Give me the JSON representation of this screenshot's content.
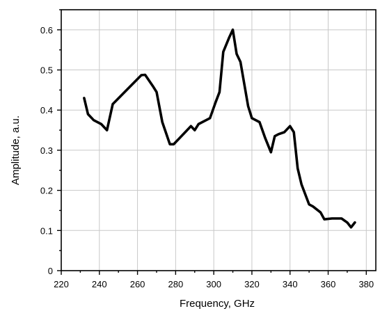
{
  "chart_data": {
    "type": "line",
    "title": "",
    "xlabel": "Frequency, GHz",
    "ylabel": "Amplitude, a.u.",
    "xlim": [
      220,
      385
    ],
    "ylim": [
      0,
      0.65
    ],
    "x_ticks": [
      220,
      240,
      260,
      280,
      300,
      320,
      340,
      360,
      380
    ],
    "x_tick_labels": [
      "220",
      "240",
      "260",
      "280",
      "300",
      "320",
      "340",
      "360",
      "380"
    ],
    "y_ticks": [
      0,
      0.1,
      0.2,
      0.3,
      0.4,
      0.5,
      0.6
    ],
    "y_tick_labels": [
      "0",
      "0.1",
      "0.2",
      "0.3",
      "0.4",
      "0.5",
      "0.6"
    ],
    "grid": true,
    "legend": "none",
    "line_color": "#000000",
    "grid_color": "#c8c8c8",
    "series": [
      {
        "x": [
          232,
          234,
          237,
          241,
          244,
          247,
          262,
          264,
          268,
          270,
          273,
          277,
          279,
          285,
          288,
          290,
          292,
          298,
          301,
          303,
          305,
          308,
          310,
          312,
          314,
          318,
          320,
          324,
          327,
          330,
          332,
          334,
          337,
          340,
          342,
          344,
          346,
          350,
          352,
          356,
          358,
          362,
          367,
          370,
          372,
          374
        ],
        "y": [
          0.43,
          0.39,
          0.375,
          0.365,
          0.35,
          0.415,
          0.487,
          0.488,
          0.46,
          0.445,
          0.37,
          0.315,
          0.315,
          0.345,
          0.36,
          0.35,
          0.365,
          0.38,
          0.42,
          0.445,
          0.545,
          0.58,
          0.6,
          0.54,
          0.52,
          0.41,
          0.38,
          0.37,
          0.33,
          0.295,
          0.335,
          0.34,
          0.345,
          0.36,
          0.345,
          0.255,
          0.215,
          0.165,
          0.16,
          0.145,
          0.128,
          0.13,
          0.13,
          0.12,
          0.108,
          0.12
        ]
      }
    ]
  }
}
